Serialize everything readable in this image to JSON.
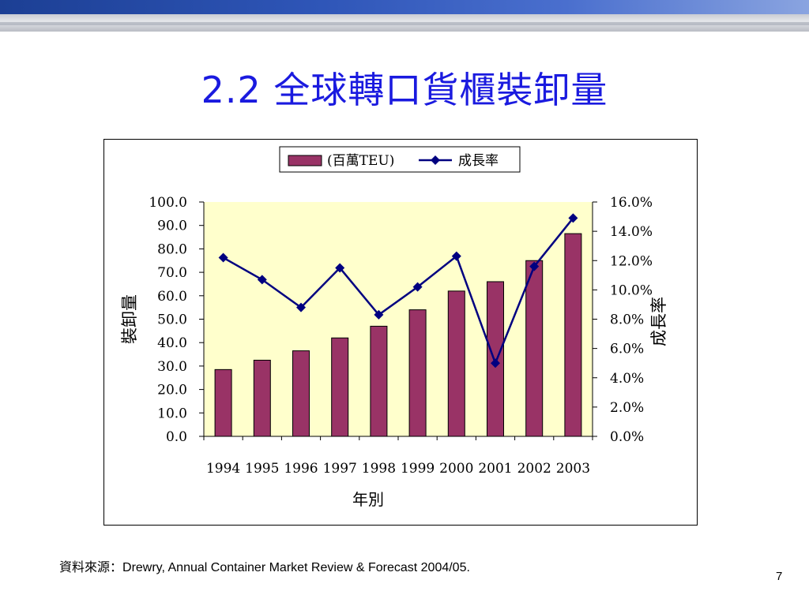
{
  "slide": {
    "title": "2.2 全球轉口貨櫃裝卸量",
    "source_label": "資料來源：",
    "source_text": "Drewry, Annual Container Market Review & Forecast 2004/05.",
    "page_number": "7"
  },
  "colors": {
    "title": "#1a1adf",
    "plot_background": "#ffffcc",
    "bar_fill": "#993366",
    "line": "#000080",
    "header_bar": "#1c3f94"
  },
  "chart_data": {
    "type": "bar+line",
    "categories": [
      "1994",
      "1995",
      "1996",
      "1997",
      "1998",
      "1999",
      "2000",
      "2001",
      "2002",
      "2003"
    ],
    "series": [
      {
        "name": "(百萬TEU)",
        "type": "bar",
        "axis": "left",
        "values": [
          28.5,
          32.5,
          36.5,
          42.0,
          47.0,
          54.0,
          62.0,
          66.0,
          75.0,
          86.5
        ]
      },
      {
        "name": "成長率",
        "type": "line",
        "axis": "right",
        "values": [
          12.2,
          10.7,
          8.8,
          11.5,
          8.3,
          10.2,
          12.3,
          5.0,
          11.6,
          14.9
        ]
      }
    ],
    "xlabel": "年別",
    "ylabel_left": "裝卸量",
    "ylabel_right": "成長率",
    "ylim_left": [
      0,
      100
    ],
    "ylim_right": [
      0,
      16
    ],
    "yticks_left": [
      "100.0",
      "90.0",
      "80.0",
      "70.0",
      "60.0",
      "50.0",
      "40.0",
      "30.0",
      "20.0",
      "10.0",
      "0.0"
    ],
    "yticks_right": [
      "16.0%",
      "14.0%",
      "12.0%",
      "10.0%",
      "8.0%",
      "6.0%",
      "4.0%",
      "2.0%",
      "0.0%"
    ],
    "legend": [
      "(百萬TEU)",
      "成長率"
    ],
    "legend_position": "top",
    "grid": false
  }
}
